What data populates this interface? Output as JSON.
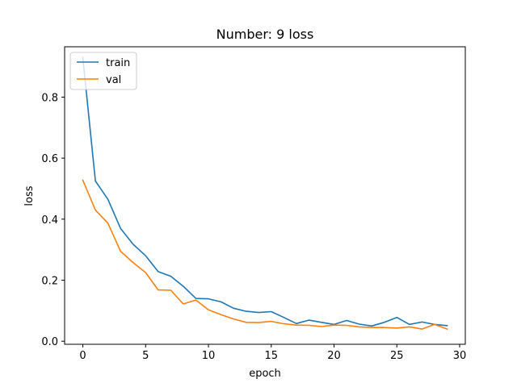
{
  "chart_data": {
    "type": "line",
    "title": "Number: 9 loss",
    "xlabel": "epoch",
    "ylabel": "loss",
    "xlim": [
      -1.45,
      30.45
    ],
    "ylim": [
      -0.01,
      0.965
    ],
    "xticks": [
      0,
      5,
      10,
      15,
      20,
      25,
      30
    ],
    "yticks": [
      0.0,
      0.2,
      0.4,
      0.6,
      0.8
    ],
    "ytick_labels": [
      "0.0",
      "0.2",
      "0.4",
      "0.6",
      "0.8"
    ],
    "grid": false,
    "legend_position": "top-left",
    "x": [
      0,
      1,
      2,
      3,
      4,
      5,
      6,
      7,
      8,
      9,
      10,
      11,
      12,
      13,
      14,
      15,
      16,
      17,
      18,
      19,
      20,
      21,
      22,
      23,
      24,
      25,
      26,
      27,
      28,
      29
    ],
    "series": [
      {
        "name": "train",
        "color": "#1f77b4",
        "values": [
          0.93,
          0.525,
          0.465,
          0.37,
          0.318,
          0.28,
          0.228,
          0.213,
          0.18,
          0.14,
          0.139,
          0.129,
          0.108,
          0.098,
          0.094,
          0.097,
          0.078,
          0.058,
          0.069,
          0.062,
          0.055,
          0.068,
          0.056,
          0.05,
          0.062,
          0.078,
          0.055,
          0.063,
          0.055,
          0.051
        ]
      },
      {
        "name": "val",
        "color": "#ff7f0e",
        "values": [
          0.528,
          0.43,
          0.387,
          0.295,
          0.258,
          0.225,
          0.168,
          0.167,
          0.122,
          0.135,
          0.103,
          0.087,
          0.073,
          0.062,
          0.061,
          0.065,
          0.057,
          0.053,
          0.052,
          0.048,
          0.053,
          0.052,
          0.047,
          0.045,
          0.045,
          0.043,
          0.047,
          0.04,
          0.055,
          0.04
        ]
      }
    ]
  }
}
